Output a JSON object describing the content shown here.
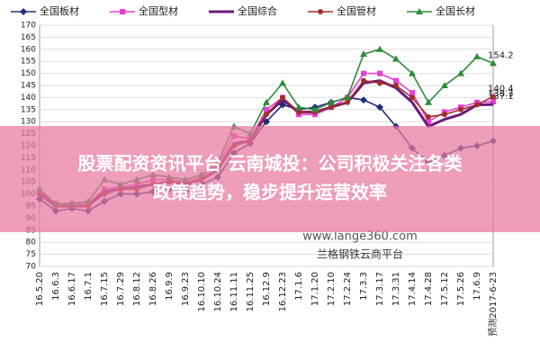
{
  "chart_data": {
    "type": "line",
    "categories": [
      "16.5.20",
      "16.6.3",
      "16.6.17",
      "16.7.1",
      "16.7.15",
      "16.7.29",
      "16.8.12",
      "16.8.26",
      "16.9.9",
      "16.9.23",
      "16.10.10",
      "16.10.24",
      "16.11.11",
      "16.11.25",
      "16.12.9",
      "16.12.23",
      "17.1.6",
      "17.1.20",
      "17.2.10",
      "17.2.24",
      "17.3.3",
      "17.3.17",
      "17.3.31",
      "17.4.14",
      "17.4.28",
      "17.5.12",
      "17.5.26",
      "17.6.9",
      "预测2017-6-23"
    ],
    "series": [
      {
        "name": "全国板材",
        "color": "#1f2f7a",
        "marker": "diamond",
        "values": [
          98,
          93,
          94,
          93,
          97,
          100,
          100,
          101,
          102,
          101,
          104,
          107,
          117,
          121,
          130,
          137,
          135,
          136,
          138,
          140,
          139,
          136,
          128,
          119,
          113,
          116,
          119,
          120,
          122
        ]
      },
      {
        "name": "全国型材",
        "color": "#e83fd0",
        "marker": "square",
        "values": [
          101,
          96,
          96,
          96,
          102,
          103,
          104,
          106,
          106,
          105,
          107,
          112,
          124,
          123,
          135,
          140,
          133,
          133,
          136,
          140,
          150,
          150,
          147,
          142,
          130,
          134,
          136,
          138,
          138.3
        ],
        "value_labels": [
          null,
          null,
          null,
          null,
          null,
          null,
          null,
          null,
          null,
          null,
          null,
          null,
          null,
          null,
          null,
          null,
          null,
          null,
          null,
          null,
          null,
          null,
          null,
          null,
          null,
          null,
          null,
          null,
          "138.3"
        ]
      },
      {
        "name": "全国综合",
        "color": "#6a1a7a",
        "marker": "none",
        "values": [
          100,
          95,
          95,
          95,
          101,
          102,
          103,
          104,
          105,
          104,
          106,
          110,
          121,
          122,
          133,
          139,
          134,
          134,
          136,
          138,
          146,
          147,
          144,
          138,
          128,
          131,
          133,
          137,
          137.1
        ],
        "value_labels": [
          null,
          null,
          null,
          null,
          null,
          null,
          null,
          null,
          null,
          null,
          null,
          null,
          null,
          null,
          null,
          null,
          null,
          null,
          null,
          null,
          null,
          null,
          null,
          null,
          null,
          null,
          null,
          null,
          "137.1"
        ]
      },
      {
        "name": "全国管材",
        "color": "#a0302a",
        "marker": "circle",
        "values": [
          100,
          95,
          95,
          95,
          100,
          102,
          102,
          104,
          105,
          104,
          106,
          110,
          120,
          122,
          133,
          140,
          134,
          134,
          136,
          138,
          147,
          146,
          145,
          140,
          132,
          133,
          135,
          137,
          140.4
        ],
        "value_labels": [
          null,
          null,
          null,
          null,
          null,
          null,
          null,
          null,
          null,
          null,
          null,
          null,
          null,
          null,
          null,
          null,
          null,
          null,
          null,
          null,
          null,
          null,
          null,
          null,
          null,
          null,
          null,
          null,
          "140.4"
        ]
      },
      {
        "name": "全国长材",
        "color": "#2e8b3a",
        "marker": "triangle",
        "values": [
          102,
          96,
          96,
          97,
          106,
          104,
          106,
          108,
          107,
          106,
          108,
          113,
          128,
          125,
          138,
          146,
          136,
          135,
          138,
          140,
          158,
          160,
          156,
          150,
          138,
          145,
          150,
          157,
          154.2
        ],
        "value_labels": [
          null,
          null,
          null,
          null,
          null,
          null,
          null,
          null,
          null,
          null,
          null,
          null,
          null,
          null,
          null,
          null,
          null,
          null,
          null,
          null,
          null,
          null,
          null,
          null,
          null,
          null,
          null,
          null,
          "154.2"
        ]
      }
    ],
    "ylim": [
      70,
      170
    ],
    "yticks": [
      70,
      75,
      80,
      85,
      90,
      95,
      100,
      105,
      110,
      115,
      120,
      125,
      130,
      135,
      140,
      145,
      150,
      155,
      160,
      165,
      170
    ],
    "grid": true,
    "annotations": [
      "www.lange360.com",
      "兰格钢铁云商平台"
    ],
    "banner": [
      "股票配资资讯平台 云南城投：公司积极关注各类",
      "政策趋势，稳步提升运营效率"
    ]
  }
}
